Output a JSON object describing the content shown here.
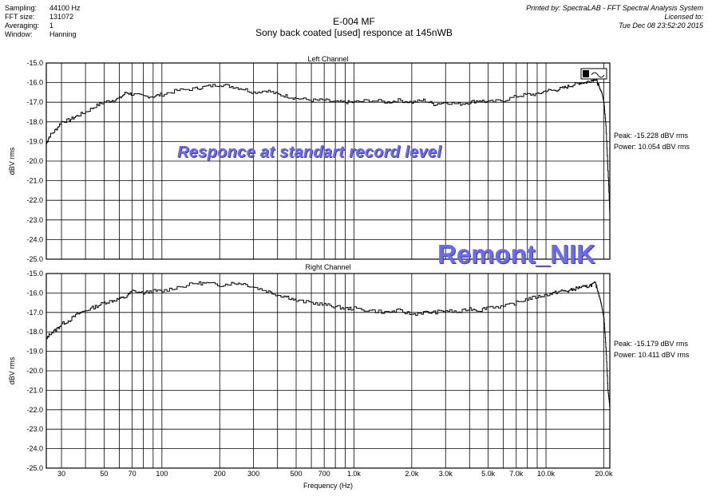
{
  "meta_left": [
    {
      "key": "Sampling:",
      "value": "44100 Hz"
    },
    {
      "key": "FFT size:",
      "value": "131072"
    },
    {
      "key": "Averaging:",
      "value": "1"
    },
    {
      "key": "Window:",
      "value": "Hanning"
    }
  ],
  "meta_right": [
    "Printed by: SpectraLAB - FFT Spectral Analysis System",
    "Licensed to:",
    "Tue Dec 08 23:52:20 2015"
  ],
  "title": "E-004 MF",
  "subtitle": "Sony back coated [used] responce at 145nWB",
  "watermarks": [
    "Responce at standart record level",
    "Remont_NIK"
  ],
  "chart_data": [
    {
      "type": "line",
      "title": "Left Channel",
      "xlabel": "Frequency (Hz)",
      "ylabel": "dBV rms",
      "xscale": "log",
      "xlim": [
        25,
        21500
      ],
      "ylim": [
        -25.0,
        -15.0
      ],
      "yticks": [
        "-15.0",
        "-16.0",
        "-17.0",
        "-18.0",
        "-19.0",
        "-20.0",
        "-21.0",
        "-22.0",
        "-23.0",
        "-24.0",
        "-25.0"
      ],
      "grid": true,
      "stats": {
        "peak": "Peak: -15.228 dBV rms",
        "power": "Power: 10.054 dBV rms"
      },
      "x": [
        25,
        26,
        28,
        30,
        33,
        36,
        40,
        45,
        50,
        55,
        60,
        65,
        70,
        80,
        90,
        100,
        120,
        150,
        170,
        200,
        230,
        260,
        300,
        350,
        400,
        450,
        500,
        600,
        700,
        800,
        900,
        1000,
        1200,
        1500,
        1700,
        2000,
        2300,
        2600,
        3000,
        3500,
        4000,
        4500,
        5000,
        6000,
        7000,
        8000,
        9000,
        10000,
        11000,
        12000,
        13000,
        14000,
        15000,
        16000,
        17000,
        18000,
        18500,
        19000,
        19500,
        20000,
        20500,
        21000,
        21500
      ],
      "y": [
        -19.1,
        -18.7,
        -18.4,
        -18.0,
        -17.9,
        -17.7,
        -17.5,
        -17.2,
        -17.0,
        -16.9,
        -16.8,
        -16.5,
        -16.6,
        -16.7,
        -16.7,
        -16.6,
        -16.4,
        -16.3,
        -16.2,
        -16.1,
        -16.2,
        -16.3,
        -16.5,
        -16.4,
        -16.6,
        -16.7,
        -16.8,
        -16.9,
        -16.9,
        -17.0,
        -17.0,
        -17.0,
        -16.9,
        -17.0,
        -16.9,
        -17.0,
        -16.9,
        -17.1,
        -17.0,
        -17.1,
        -17.0,
        -16.9,
        -17.0,
        -16.9,
        -16.7,
        -16.6,
        -16.6,
        -16.4,
        -16.4,
        -16.3,
        -16.2,
        -16.1,
        -16.0,
        -16.0,
        -15.9,
        -15.8,
        -16.0,
        -16.3,
        -16.5,
        -17.0,
        -18.2,
        -20.5,
        -22.7
      ]
    },
    {
      "type": "line",
      "title": "Right Channel",
      "xlabel": "Frequency (Hz)",
      "ylabel": "dBV rms",
      "xscale": "log",
      "xlim": [
        25,
        21500
      ],
      "ylim": [
        -25.0,
        -15.0
      ],
      "yticks": [
        "-15.0",
        "-16.0",
        "-17.0",
        "-18.0",
        "-19.0",
        "-20.0",
        "-21.0",
        "-22.0",
        "-23.0",
        "-24.0",
        "-25.0"
      ],
      "xticks": [
        {
          "v": 30,
          "t": "30"
        },
        {
          "v": 50,
          "t": "50"
        },
        {
          "v": 70,
          "t": "70"
        },
        {
          "v": 100,
          "t": "100"
        },
        {
          "v": 200,
          "t": "200"
        },
        {
          "v": 300,
          "t": "300"
        },
        {
          "v": 500,
          "t": "500"
        },
        {
          "v": 700,
          "t": "700"
        },
        {
          "v": 1000,
          "t": "1.0k"
        },
        {
          "v": 2000,
          "t": "2.0k"
        },
        {
          "v": 3000,
          "t": "3.0k"
        },
        {
          "v": 5000,
          "t": "5.0k"
        },
        {
          "v": 7000,
          "t": "7.0k"
        },
        {
          "v": 10000,
          "t": "10.0k"
        },
        {
          "v": 20000,
          "t": "20.0k"
        }
      ],
      "grid": true,
      "stats": {
        "peak": "Peak: -15.179 dBV rms",
        "power": "Power: 10.411 dBV rms"
      },
      "x": [
        25,
        26,
        28,
        30,
        33,
        36,
        40,
        45,
        50,
        55,
        60,
        65,
        70,
        80,
        90,
        100,
        120,
        150,
        170,
        200,
        230,
        260,
        300,
        350,
        400,
        450,
        500,
        600,
        700,
        800,
        900,
        1000,
        1200,
        1500,
        1700,
        2000,
        2300,
        2600,
        3000,
        3500,
        4000,
        4500,
        5000,
        6000,
        7000,
        8000,
        9000,
        10000,
        11000,
        12000,
        13000,
        14000,
        15000,
        16000,
        17000,
        18000,
        18500,
        19000,
        19500,
        20000,
        20500,
        21000,
        21500
      ],
      "y": [
        -18.4,
        -18.1,
        -17.9,
        -17.6,
        -17.4,
        -17.1,
        -16.9,
        -16.7,
        -16.5,
        -16.4,
        -16.3,
        -16.2,
        -15.9,
        -16.0,
        -15.9,
        -15.9,
        -15.7,
        -15.5,
        -15.5,
        -15.6,
        -15.5,
        -15.5,
        -15.7,
        -15.9,
        -16.1,
        -16.2,
        -16.4,
        -16.5,
        -16.6,
        -16.7,
        -16.8,
        -16.8,
        -16.9,
        -17.0,
        -16.9,
        -17.1,
        -17.0,
        -17.0,
        -16.9,
        -17.0,
        -16.8,
        -16.9,
        -16.7,
        -16.7,
        -16.5,
        -16.3,
        -16.2,
        -16.1,
        -16.0,
        -15.9,
        -15.9,
        -15.8,
        -15.7,
        -15.7,
        -15.6,
        -15.5,
        -15.8,
        -16.2,
        -16.7,
        -17.3,
        -18.8,
        -21.0,
        -21.9
      ]
    }
  ]
}
